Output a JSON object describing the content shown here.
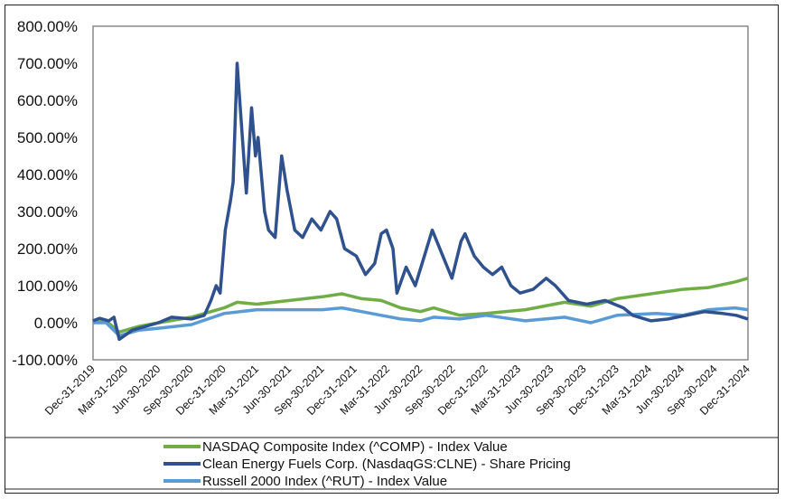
{
  "chart_data": {
    "type": "line",
    "title": "",
    "xlabel": "",
    "ylabel": "",
    "ylim": [
      -100,
      800
    ],
    "yticks": [
      "800.00%",
      "700.00%",
      "600.00%",
      "500.00%",
      "400.00%",
      "300.00%",
      "200.00%",
      "100.00%",
      "0.00%",
      "-100.00%"
    ],
    "xlim": [
      2020.0,
      2025.0
    ],
    "xticks": [
      "Dec-31-2019",
      "Mar-31-2020",
      "Jun-30-2020",
      "Sep-30-2020",
      "Dec-31-2020",
      "Mar-31-2021",
      "Jun-30-2021",
      "Sep-30-2021",
      "Dec-31-2021",
      "Mar-31-2022",
      "Jun-30-2022",
      "Sep-30-2022",
      "Dec-31-2022",
      "Mar-31-2023",
      "Jun-30-2023",
      "Sep-30-2023",
      "Dec-31-2023",
      "Mar-31-2024",
      "Jun-30-2024",
      "Sep-30-2024",
      "Dec-31-2024"
    ],
    "legend_position": "bottom",
    "grid": false,
    "series": [
      {
        "name": "NASDAQ Composite Index (^COMP) - Index Value",
        "color": "#70AD47",
        "points": [
          [
            2020.0,
            0
          ],
          [
            2020.1,
            5
          ],
          [
            2020.2,
            -25
          ],
          [
            2020.35,
            -10
          ],
          [
            2020.5,
            0
          ],
          [
            2020.75,
            15
          ],
          [
            2021.0,
            40
          ],
          [
            2021.1,
            55
          ],
          [
            2021.25,
            50
          ],
          [
            2021.5,
            60
          ],
          [
            2021.75,
            70
          ],
          [
            2021.9,
            78
          ],
          [
            2022.05,
            65
          ],
          [
            2022.2,
            60
          ],
          [
            2022.35,
            40
          ],
          [
            2022.5,
            30
          ],
          [
            2022.6,
            40
          ],
          [
            2022.8,
            20
          ],
          [
            2023.0,
            25
          ],
          [
            2023.3,
            35
          ],
          [
            2023.6,
            55
          ],
          [
            2023.8,
            45
          ],
          [
            2024.0,
            65
          ],
          [
            2024.3,
            80
          ],
          [
            2024.5,
            90
          ],
          [
            2024.7,
            95
          ],
          [
            2024.9,
            110
          ],
          [
            2025.0,
            120
          ]
        ]
      },
      {
        "name": "Clean Energy Fuels Corp. (NasdaqGS:CLNE) - Share Pricing",
        "color": "#2F528F",
        "points": [
          [
            2020.0,
            5
          ],
          [
            2020.05,
            12
          ],
          [
            2020.12,
            5
          ],
          [
            2020.16,
            15
          ],
          [
            2020.2,
            -45
          ],
          [
            2020.3,
            -20
          ],
          [
            2020.5,
            0
          ],
          [
            2020.6,
            15
          ],
          [
            2020.75,
            10
          ],
          [
            2020.85,
            20
          ],
          [
            2020.9,
            60
          ],
          [
            2020.94,
            100
          ],
          [
            2020.97,
            80
          ],
          [
            2021.01,
            250
          ],
          [
            2021.05,
            330
          ],
          [
            2021.07,
            380
          ],
          [
            2021.1,
            700
          ],
          [
            2021.14,
            500
          ],
          [
            2021.17,
            350
          ],
          [
            2021.21,
            580
          ],
          [
            2021.24,
            450
          ],
          [
            2021.26,
            500
          ],
          [
            2021.31,
            300
          ],
          [
            2021.34,
            250
          ],
          [
            2021.39,
            230
          ],
          [
            2021.44,
            450
          ],
          [
            2021.48,
            360
          ],
          [
            2021.54,
            250
          ],
          [
            2021.6,
            230
          ],
          [
            2021.67,
            280
          ],
          [
            2021.74,
            250
          ],
          [
            2021.81,
            300
          ],
          [
            2021.86,
            280
          ],
          [
            2021.92,
            200
          ],
          [
            2022.01,
            180
          ],
          [
            2022.08,
            130
          ],
          [
            2022.15,
            160
          ],
          [
            2022.2,
            240
          ],
          [
            2022.24,
            250
          ],
          [
            2022.29,
            200
          ],
          [
            2022.32,
            80
          ],
          [
            2022.39,
            150
          ],
          [
            2022.46,
            100
          ],
          [
            2022.53,
            180
          ],
          [
            2022.59,
            250
          ],
          [
            2022.67,
            180
          ],
          [
            2022.74,
            120
          ],
          [
            2022.81,
            220
          ],
          [
            2022.84,
            240
          ],
          [
            2022.91,
            180
          ],
          [
            2022.98,
            150
          ],
          [
            2023.05,
            130
          ],
          [
            2023.12,
            150
          ],
          [
            2023.19,
            100
          ],
          [
            2023.26,
            80
          ],
          [
            2023.36,
            90
          ],
          [
            2023.46,
            120
          ],
          [
            2023.53,
            100
          ],
          [
            2023.63,
            60
          ],
          [
            2023.77,
            50
          ],
          [
            2023.91,
            60
          ],
          [
            2024.05,
            40
          ],
          [
            2024.12,
            20
          ],
          [
            2024.26,
            5
          ],
          [
            2024.39,
            10
          ],
          [
            2024.53,
            20
          ],
          [
            2024.67,
            30
          ],
          [
            2024.81,
            25
          ],
          [
            2024.91,
            20
          ],
          [
            2025.0,
            10
          ]
        ]
      },
      {
        "name": "Russell 2000 Index (^RUT) - Index Value",
        "color": "#5B9BD5",
        "points": [
          [
            2020.0,
            0
          ],
          [
            2020.1,
            0
          ],
          [
            2020.2,
            -35
          ],
          [
            2020.35,
            -20
          ],
          [
            2020.5,
            -15
          ],
          [
            2020.75,
            -5
          ],
          [
            2021.0,
            25
          ],
          [
            2021.25,
            35
          ],
          [
            2021.5,
            35
          ],
          [
            2021.75,
            35
          ],
          [
            2021.9,
            40
          ],
          [
            2022.05,
            30
          ],
          [
            2022.2,
            20
          ],
          [
            2022.35,
            10
          ],
          [
            2022.5,
            5
          ],
          [
            2022.6,
            15
          ],
          [
            2022.8,
            10
          ],
          [
            2023.0,
            20
          ],
          [
            2023.3,
            5
          ],
          [
            2023.6,
            15
          ],
          [
            2023.8,
            0
          ],
          [
            2024.0,
            20
          ],
          [
            2024.3,
            25
          ],
          [
            2024.5,
            20
          ],
          [
            2024.7,
            35
          ],
          [
            2024.9,
            40
          ],
          [
            2025.0,
            35
          ]
        ]
      }
    ]
  }
}
